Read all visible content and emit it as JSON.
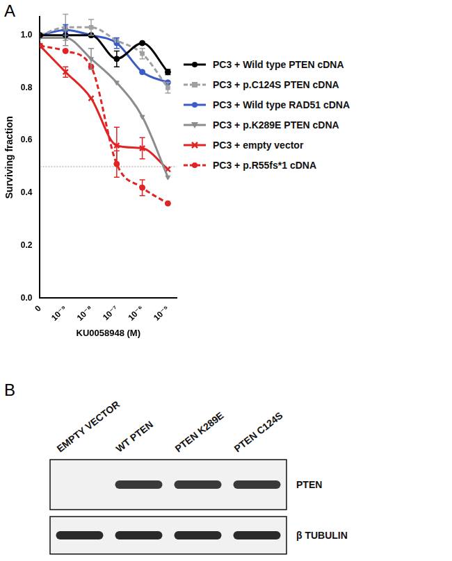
{
  "panel_labels": [
    "A",
    "B"
  ],
  "chart_data": {
    "type": "line",
    "x_label": "KU0058948 (M)",
    "y_label": "Surviving fraction",
    "log": "x",
    "grid": false,
    "legend": "right",
    "xlim": [
      1e-10,
      2.2e-05
    ],
    "xticks": [
      {
        "value": 1e-10,
        "label": "0"
      },
      {
        "value": 1e-09,
        "label": "10⁻⁹"
      },
      {
        "value": 1e-08,
        "label": "10⁻⁸"
      },
      {
        "value": 1e-07,
        "label": "10⁻⁷"
      },
      {
        "value": 1e-06,
        "label": "10⁻⁶"
      },
      {
        "value": 1e-05,
        "label": "10⁻⁵"
      }
    ],
    "ylim": [
      0,
      1.07
    ],
    "yticks": [
      {
        "value": 0,
        "label": "0.0"
      },
      0.2,
      0.4,
      0.6,
      0.8,
      {
        "value": 1,
        "label": "1.0"
      }
    ],
    "reference_line": 0.5,
    "x": [
      1e-10,
      1e-09,
      1e-08,
      1e-07,
      1e-06,
      1e-05
    ],
    "series": [
      {
        "name": "PC3 + Wild type PTEN cDNA",
        "color": "#000000",
        "marker": "circle",
        "line_style": "solid",
        "values": [
          1.0,
          1.0,
          1.0,
          0.91,
          0.97,
          0.86
        ],
        "errors": [
          0.0,
          0.0,
          0.0,
          0.03,
          0.0,
          0.01
        ]
      },
      {
        "name": "PC3 + p.C124S PTEN cDNA",
        "color": "#a0a0a0",
        "marker": "square",
        "line_style": "dashed",
        "values": [
          1.0,
          1.03,
          1.03,
          0.98,
          0.93,
          0.8
        ],
        "errors": [
          0.0,
          0.05,
          0.03,
          0.0,
          0.02,
          0.02
        ]
      },
      {
        "name": "PC3 + Wild type RAD51 cDNA",
        "color": "#3a5bc8",
        "marker": "circle",
        "line_style": "solid",
        "values": [
          1.0,
          1.02,
          1.0,
          0.97,
          0.86,
          0.82
        ],
        "errors": [
          0.0,
          0.02,
          0.0,
          0.02,
          0.0,
          0.0
        ]
      },
      {
        "name": "PC3 + p.K289E PTEN cDNA",
        "color": "#8c8c8c",
        "marker": "triangle-down",
        "line_style": "solid",
        "values": [
          0.99,
          0.99,
          0.91,
          0.82,
          0.69,
          0.46
        ],
        "errors": [
          0.0,
          0.03,
          0.04,
          0.0,
          0.0,
          0.0
        ]
      },
      {
        "name": "PC3 + empty vector",
        "color": "#e02424",
        "marker": "x",
        "line_style": "solid",
        "values": [
          0.96,
          0.86,
          0.76,
          0.58,
          0.57,
          0.49
        ],
        "errors": [
          0.0,
          0.02,
          0.0,
          0.07,
          0.04,
          0.0
        ]
      },
      {
        "name": "PC3 + p.R55fs*1 cDNA",
        "color": "#e02424",
        "marker": "circle",
        "line_style": "dashed",
        "values": [
          0.96,
          0.94,
          0.88,
          0.51,
          0.42,
          0.36
        ],
        "errors": [
          0.0,
          0.0,
          0.0,
          0.05,
          0.03,
          0.0
        ]
      }
    ]
  },
  "blot": {
    "lanes": [
      "EMPTY VECTOR",
      "WT PTEN",
      "PTEN K289E",
      "PTEN C124S"
    ],
    "rows": [
      {
        "label": "PTEN",
        "present": [
          false,
          true,
          true,
          true
        ]
      },
      {
        "label": "β TUBULIN",
        "present": [
          true,
          true,
          true,
          true
        ]
      }
    ]
  }
}
